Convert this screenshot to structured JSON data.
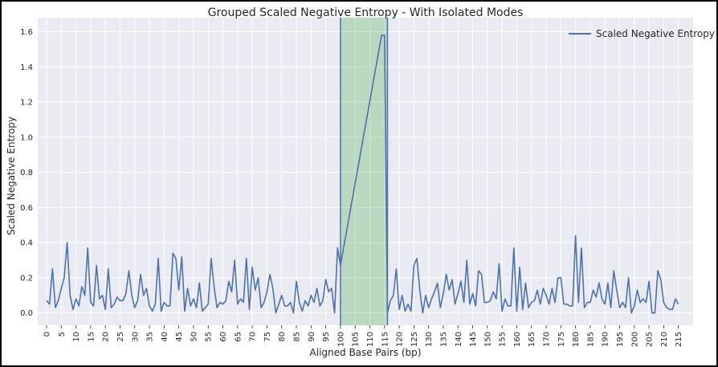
{
  "chart_data": {
    "type": "line",
    "title": "Grouped Scaled Negative Entropy - With Isolated Modes",
    "xlabel": "Aligned Base Pairs (bp)",
    "ylabel": "Scaled Negative Entropy",
    "xlim": [
      -3,
      220
    ],
    "ylim": [
      -0.07,
      1.68
    ],
    "xticks": [
      0,
      5,
      10,
      15,
      20,
      25,
      30,
      35,
      40,
      45,
      50,
      55,
      60,
      65,
      70,
      75,
      80,
      85,
      90,
      95,
      100,
      105,
      110,
      115,
      120,
      125,
      130,
      135,
      140,
      145,
      150,
      155,
      160,
      165,
      170,
      175,
      180,
      185,
      190,
      195,
      200,
      205,
      210,
      215
    ],
    "yticks": [
      0.0,
      0.2,
      0.4,
      0.6,
      0.8,
      1.0,
      1.2,
      1.4,
      1.6
    ],
    "ytick_labels": [
      "0.0",
      "0.2",
      "0.4",
      "0.6",
      "0.8",
      "1.0",
      "1.2",
      "1.4",
      "1.6"
    ],
    "grid": true,
    "legend_position": "top-right",
    "highlight_region": {
      "x_start": 100,
      "x_end": 116,
      "color": "#2ca02c"
    },
    "series": [
      {
        "name": "Scaled Negative Entropy",
        "color": "#4c72b0",
        "x": [
          0,
          1,
          2,
          3,
          4,
          5,
          6,
          7,
          8,
          9,
          10,
          11,
          12,
          13,
          14,
          15,
          16,
          17,
          18,
          19,
          20,
          21,
          22,
          23,
          24,
          25,
          26,
          27,
          28,
          29,
          30,
          31,
          32,
          33,
          34,
          35,
          36,
          37,
          38,
          39,
          40,
          41,
          42,
          43,
          44,
          45,
          46,
          47,
          48,
          49,
          50,
          51,
          52,
          53,
          54,
          55,
          56,
          57,
          58,
          59,
          60,
          61,
          62,
          63,
          64,
          65,
          66,
          67,
          68,
          69,
          70,
          71,
          72,
          73,
          74,
          75,
          76,
          77,
          78,
          79,
          80,
          81,
          82,
          83,
          84,
          85,
          86,
          87,
          88,
          89,
          90,
          91,
          92,
          93,
          94,
          95,
          96,
          97,
          98,
          99,
          100,
          114,
          115,
          116,
          117,
          118,
          119,
          120,
          121,
          122,
          123,
          124,
          125,
          126,
          127,
          128,
          129,
          130,
          131,
          132,
          133,
          134,
          135,
          136,
          137,
          138,
          139,
          140,
          141,
          142,
          143,
          144,
          145,
          146,
          147,
          148,
          149,
          150,
          151,
          152,
          153,
          154,
          155,
          156,
          157,
          158,
          159,
          160,
          161,
          162,
          163,
          164,
          165,
          166,
          167,
          168,
          169,
          170,
          171,
          172,
          173,
          174,
          175,
          176,
          177,
          178,
          179,
          180,
          181,
          182,
          183,
          184,
          185,
          186,
          187,
          188,
          189,
          190,
          191,
          192,
          193,
          194,
          195,
          196,
          197,
          198,
          199,
          200,
          201,
          202,
          203,
          204,
          205,
          206,
          207,
          208,
          209,
          210,
          211,
          212,
          213,
          214,
          215
        ],
        "y": [
          0.07,
          0.05,
          0.25,
          0.03,
          0.07,
          0.14,
          0.2,
          0.4,
          0.1,
          0.02,
          0.08,
          0.04,
          0.15,
          0.1,
          0.37,
          0.06,
          0.04,
          0.27,
          0.08,
          0.1,
          0.02,
          0.25,
          0.03,
          0.05,
          0.09,
          0.07,
          0.07,
          0.11,
          0.24,
          0.1,
          0.03,
          0.07,
          0.22,
          0.1,
          0.14,
          0.04,
          0.01,
          0.05,
          0.31,
          0.01,
          0.06,
          0.04,
          0.04,
          0.34,
          0.31,
          0.13,
          0.32,
          0.01,
          0.14,
          0.04,
          0.08,
          0.03,
          0.17,
          0.01,
          0.03,
          0.05,
          0.31,
          0.15,
          0.03,
          0.06,
          0.05,
          0.07,
          0.18,
          0.12,
          0.3,
          0.05,
          0.08,
          0.06,
          0.31,
          0.02,
          0.26,
          0.13,
          0.2,
          0.03,
          0.06,
          0.12,
          0.22,
          0.14,
          0.0,
          0.05,
          0.1,
          0.04,
          0.04,
          0.06,
          0.0,
          0.18,
          0.06,
          0.01,
          0.07,
          0.04,
          0.1,
          0.06,
          0.14,
          0.04,
          0.07,
          0.19,
          0.12,
          0.14,
          0.0,
          0.37,
          0.27,
          1.58,
          1.58,
          0.0,
          0.07,
          0.1,
          0.25,
          0.02,
          0.1,
          0.01,
          0.05,
          0.01,
          0.27,
          0.31,
          0.13,
          0.0,
          0.1,
          0.03,
          0.08,
          0.12,
          0.17,
          0.03,
          0.11,
          0.22,
          0.13,
          0.19,
          0.05,
          0.11,
          0.18,
          0.06,
          0.3,
          0.05,
          0.11,
          0.04,
          0.24,
          0.22,
          0.06,
          0.06,
          0.07,
          0.12,
          0.08,
          0.28,
          0.01,
          0.08,
          0.04,
          0.04,
          0.37,
          0.01,
          0.26,
          0.02,
          0.17,
          0.03,
          0.06,
          0.07,
          0.13,
          0.05,
          0.14,
          0.1,
          0.05,
          0.14,
          0.06,
          0.2,
          0.2,
          0.05,
          0.05,
          0.04,
          0.04,
          0.44,
          0.06,
          0.37,
          0.03,
          0.06,
          0.06,
          0.13,
          0.09,
          0.17,
          0.08,
          0.05,
          0.17,
          0.03,
          0.24,
          0.13,
          0.03,
          0.06,
          0.03,
          0.2,
          0.0,
          0.04,
          0.13,
          0.06,
          0.08,
          0.06,
          0.18,
          0.0,
          0.0,
          0.24,
          0.19,
          0.06,
          0.03,
          0.02,
          0.02,
          0.08,
          0.05
        ]
      }
    ]
  }
}
